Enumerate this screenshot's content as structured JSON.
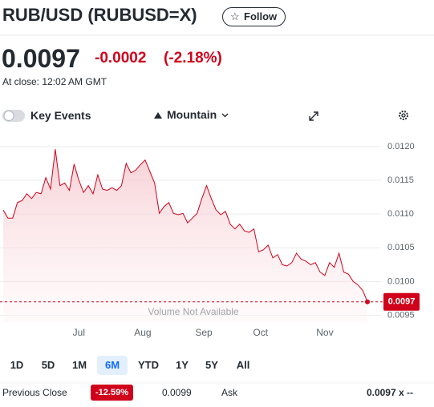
{
  "header": {
    "title": "RUB/USD (RUBUSD=X)",
    "follow": "Follow"
  },
  "price": {
    "value": "0.0097",
    "change": "-0.0002",
    "change_pct": "(-2.18%)",
    "close_time": "At close: 12:02 AM GMT"
  },
  "toolbar": {
    "key_events": "Key Events",
    "chart_type": "Mountain"
  },
  "chart_data": {
    "type": "mountain",
    "color": "#d0021b",
    "grid": true,
    "values": [
      0.01106,
      0.01094,
      0.01094,
      0.01117,
      0.0112,
      0.0113,
      0.01123,
      0.01132,
      0.0113,
      0.01154,
      0.01137,
      0.01196,
      0.01142,
      0.01146,
      0.01135,
      0.01174,
      0.0115,
      0.01132,
      0.01142,
      0.0113,
      0.01158,
      0.01137,
      0.01135,
      0.01139,
      0.01135,
      0.01142,
      0.01175,
      0.01161,
      0.01165,
      0.01173,
      0.0118,
      0.01163,
      0.01146,
      0.01101,
      0.01111,
      0.01117,
      0.01101,
      0.01099,
      0.01101,
      0.01087,
      0.01094,
      0.01101,
      0.01123,
      0.01142,
      0.01123,
      0.01106,
      0.01099,
      0.01104,
      0.01085,
      0.01078,
      0.01085,
      0.01075,
      0.01073,
      0.01078,
      0.01044,
      0.01047,
      0.01054,
      0.01035,
      0.0104,
      0.01025,
      0.01023,
      0.01028,
      0.01042,
      0.01033,
      0.0103,
      0.01025,
      0.01028,
      0.01014,
      0.01009,
      0.01028,
      0.01021,
      0.01042,
      0.01014,
      0.01011,
      0.01,
      0.00995,
      0.00987,
      0.0097
    ],
    "xlim": [
      0,
      77
    ],
    "xticks": [
      {
        "value": 16,
        "label": "Jul"
      },
      {
        "value": 29.5,
        "label": "Aug"
      },
      {
        "value": 42.4,
        "label": "Sep"
      },
      {
        "value": 54.4,
        "label": "Oct"
      },
      {
        "value": 68,
        "label": "Nov"
      }
    ],
    "ylim": [
      0.0094,
      0.0122
    ],
    "yticks": [
      {
        "value": 0.012,
        "label": "0.0120"
      },
      0.0115,
      {
        "value": 0.011,
        "label": "0.0110"
      },
      0.0105,
      {
        "value": 0.01,
        "label": "0.0100"
      },
      0.0095
    ],
    "reference": 0.0097,
    "annotation": "Volume Not Available"
  },
  "ranges": {
    "items": [
      "1D",
      "5D",
      "1M",
      "6M",
      "YTD",
      "1Y",
      "5Y",
      "All"
    ],
    "active": 3
  },
  "quote": {
    "prev_close_label": "Previous Close",
    "range_change": "-12.59%",
    "prev_close": "0.0099",
    "ask_label": "Ask",
    "ask": "0.0097 x --"
  }
}
